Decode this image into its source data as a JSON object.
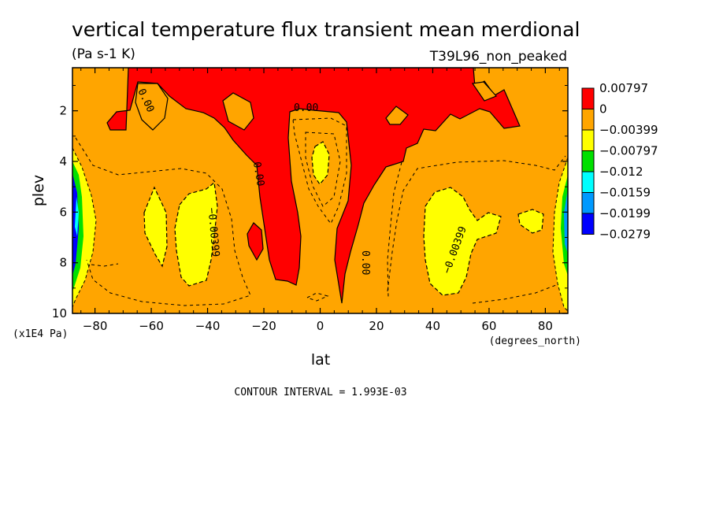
{
  "chart_data": {
    "type": "contour",
    "title": "vertical temperature flux transient mean merdional",
    "units": "(Pa s-1 K)",
    "dataset_label": "T39L96_non_peaked",
    "xlabel": "lat",
    "x_units": "(degrees_north)",
    "ylabel": "plev",
    "y_units": "(x1E4 Pa)",
    "xlim": [
      -88,
      88
    ],
    "ylim": [
      10,
      0.3
    ],
    "x_ticks": [
      -80,
      -60,
      -40,
      -20,
      0,
      20,
      40,
      60,
      80
    ],
    "x_tick_labels": [
      "-80",
      "-60",
      "-40",
      "-20",
      "0",
      "20",
      "40",
      "60",
      "80"
    ],
    "y_ticks": [
      2,
      4,
      6,
      8,
      10
    ],
    "y_tick_labels": [
      "2",
      "4",
      "6",
      "8",
      "10"
    ],
    "contour_interval_text": "CONTOUR INTERVAL = 1.993E-03",
    "legend": {
      "placement": "right",
      "levels": [
        {
          "label": "0.00797",
          "color": "#ff0000"
        },
        {
          "label": "0",
          "color": "#ffa500"
        },
        {
          "label": "-0.00399",
          "color": "#ffff00"
        },
        {
          "label": "-0.00797",
          "color": "#00e000"
        },
        {
          "label": "-0.012",
          "color": "#00ffff"
        },
        {
          "label": "-0.0159",
          "color": "#0099ff"
        },
        {
          "label": "-0.0199",
          "color": "#0000ff"
        },
        {
          "label": "-0.0279",
          "color": "#ffffff"
        }
      ]
    },
    "contour_labels": [
      {
        "text": "0.00",
        "lat": -62,
        "plev": 1.6,
        "angle": 65
      },
      {
        "text": "0.00",
        "lat": -5,
        "plev": 1.9,
        "angle": 0
      },
      {
        "text": "0.00",
        "lat": -22,
        "plev": 4.5,
        "angle": 80
      },
      {
        "text": "-0.00399",
        "lat": -38,
        "plev": 6.8,
        "angle": 85
      },
      {
        "text": "0.00",
        "lat": 16,
        "plev": 8.0,
        "angle": 90
      },
      {
        "text": "-0.00399",
        "lat": 48,
        "plev": 7.5,
        "angle": -70
      }
    ],
    "regions": [
      {
        "level": "0 to 0.00797",
        "color": "#ff0000",
        "description": "upper troposphere positive flux, equatorial tongue down to ~9.5"
      },
      {
        "level": "-0.00399 to 0",
        "color": "#ffa500",
        "description": "background"
      },
      {
        "level": "-0.00797 to -0.00399",
        "color": "#ffff00",
        "description": "mid-latitude lobes near ±45, plev 5-9"
      },
      {
        "level": "below -0.00797",
        "color": "#0000ff",
        "description": "polar edges"
      }
    ]
  }
}
